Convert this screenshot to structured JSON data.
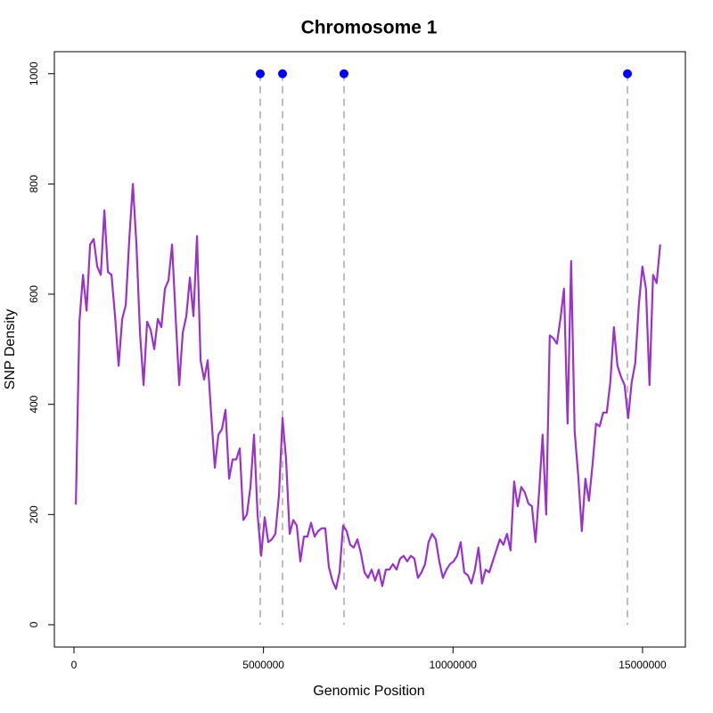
{
  "chart_data": {
    "type": "line",
    "title": "Chromosome 1",
    "x_label": "Genomic Position",
    "y_label": "SNP Density",
    "xlim": [
      -517000,
      16130000
    ],
    "ylim": [
      -40.5,
      1040
    ],
    "xticks": [
      0,
      5000000,
      10000000,
      15000000
    ],
    "yticks": [
      0,
      200,
      400,
      600,
      800,
      1000
    ],
    "color": "#9932cc",
    "x": [
      50000,
      144000,
      238000,
      332000,
      426000,
      520000,
      614000,
      708000,
      802000,
      896000,
      990000,
      1084000,
      1178000,
      1272000,
      1366000,
      1460000,
      1554000,
      1648000,
      1742000,
      1836000,
      1930000,
      2024000,
      2118000,
      2212000,
      2306000,
      2400000,
      2494000,
      2588000,
      2682000,
      2776000,
      2870000,
      2964000,
      3058000,
      3152000,
      3246000,
      3340000,
      3434000,
      3528000,
      3622000,
      3716000,
      3810000,
      3904000,
      3998000,
      4092000,
      4186000,
      4280000,
      4374000,
      4468000,
      4562000,
      4656000,
      4750000,
      4844000,
      4938000,
      5032000,
      5126000,
      5220000,
      5314000,
      5408000,
      5502000,
      5596000,
      5690000,
      5784000,
      5878000,
      5972000,
      6066000,
      6160000,
      6254000,
      6348000,
      6442000,
      6536000,
      6630000,
      6724000,
      6818000,
      6912000,
      7006000,
      7100000,
      7194000,
      7288000,
      7382000,
      7476000,
      7570000,
      7664000,
      7758000,
      7852000,
      7946000,
      8040000,
      8134000,
      8228000,
      8322000,
      8416000,
      8510000,
      8604000,
      8698000,
      8792000,
      8886000,
      8980000,
      9074000,
      9168000,
      9262000,
      9356000,
      9450000,
      9544000,
      9638000,
      9732000,
      9826000,
      9920000,
      10014000,
      10108000,
      10202000,
      10296000,
      10390000,
      10484000,
      10578000,
      10672000,
      10766000,
      10860000,
      10954000,
      11048000,
      11142000,
      11236000,
      11330000,
      11424000,
      11518000,
      11612000,
      11706000,
      11800000,
      11894000,
      11988000,
      12082000,
      12176000,
      12270000,
      12364000,
      12458000,
      12552000,
      12646000,
      12740000,
      12834000,
      12928000,
      13022000,
      13116000,
      13210000,
      13304000,
      13398000,
      13492000,
      13586000,
      13680000,
      13774000,
      13868000,
      13962000,
      14056000,
      14150000,
      14244000,
      14338000,
      14432000,
      14526000,
      14620000,
      14714000,
      14808000,
      14902000,
      14996000,
      15090000,
      15184000,
      15278000,
      15372000,
      15466000
    ],
    "values": [
      218,
      550,
      635,
      570,
      690,
      700,
      650,
      635,
      752,
      640,
      635,
      560,
      470,
      555,
      580,
      700,
      800,
      690,
      530,
      435,
      550,
      535,
      500,
      555,
      540,
      610,
      625,
      690,
      560,
      435,
      530,
      560,
      630,
      560,
      705,
      480,
      445,
      480,
      380,
      285,
      345,
      355,
      390,
      265,
      300,
      300,
      320,
      190,
      200,
      250,
      345,
      200,
      125,
      195,
      150,
      155,
      165,
      235,
      375,
      300,
      165,
      190,
      180,
      115,
      160,
      160,
      185,
      160,
      170,
      175,
      175,
      105,
      80,
      65,
      95,
      180,
      170,
      145,
      140,
      155,
      130,
      95,
      85,
      100,
      80,
      100,
      70,
      100,
      100,
      110,
      100,
      120,
      125,
      115,
      125,
      120,
      85,
      95,
      110,
      150,
      165,
      155,
      115,
      85,
      100,
      110,
      115,
      125,
      150,
      95,
      90,
      75,
      100,
      140,
      75,
      100,
      95,
      115,
      135,
      155,
      145,
      165,
      135,
      260,
      215,
      250,
      240,
      220,
      215,
      150,
      240,
      345,
      200,
      525,
      520,
      510,
      555,
      610,
      365,
      660,
      350,
      270,
      170,
      265,
      225,
      290,
      365,
      360,
      385,
      385,
      440,
      540,
      470,
      450,
      435,
      375,
      440,
      475,
      580,
      650,
      610,
      435,
      635,
      620,
      690
    ],
    "highlights": {
      "color": "#0000ff",
      "line_color": "#bebebe",
      "x": [
        4914000,
        5502000,
        7124000,
        14602000
      ],
      "values": [
        1000,
        1000,
        1000,
        1000
      ]
    }
  }
}
